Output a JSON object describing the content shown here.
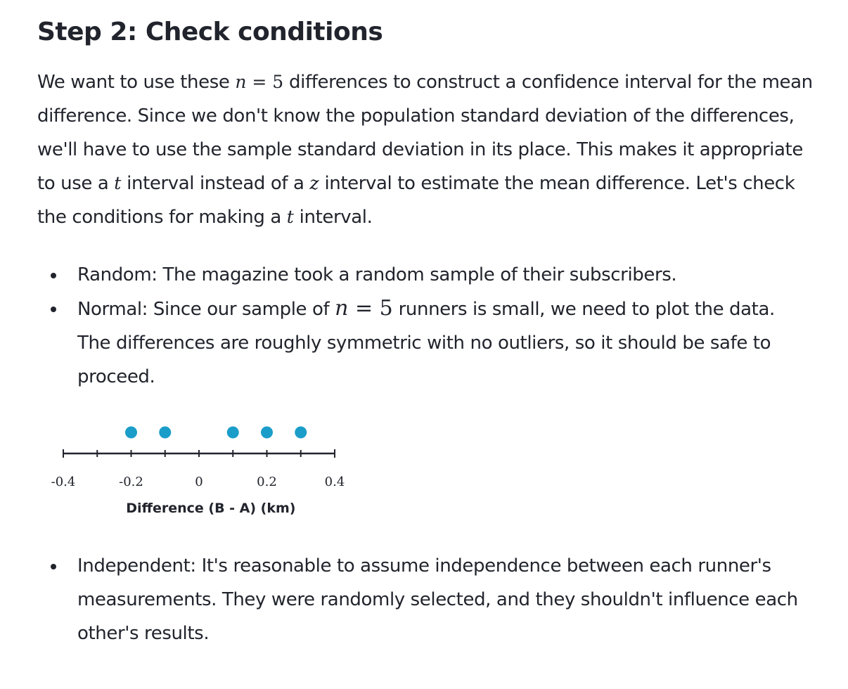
{
  "heading": "Step 2: Check conditions",
  "intro": {
    "p1": "We want to use these ",
    "m1": "n",
    "eq1": " = ",
    "n1": "5",
    "p2": " differences to construct a confidence interval for the mean difference. Since we don't know the population standard deviation of the differences, we'll have to use the sample standard deviation in its place. This makes it appropriate to use a ",
    "m2": "t",
    "p3": " interval instead of a ",
    "m3": "z",
    "p4": " interval to estimate the mean difference. Let's check the conditions for making a ",
    "m4": "t",
    "p5": " interval."
  },
  "conditions": {
    "random": "Random: The magazine took a random sample of their subscribers.",
    "normal": {
      "p1": "Normal: Since our sample of ",
      "m1": "n",
      "eq": " = ",
      "n1": "5",
      "p2": " runners is small, we need to plot the data. The differences are roughly symmetric with no outliers, so it should be safe to proceed."
    },
    "independent": "Independent: It's reasonable to assume independence between each runner's measurements. They were randomly selected, and they shouldn't influence each other's results."
  },
  "chart_data": {
    "type": "scatter",
    "chart_kind": "dot plot",
    "values": [
      -0.2,
      -0.1,
      0.1,
      0.2,
      0.3
    ],
    "xlabel": "Difference (B - A) (km)",
    "xlim": [
      -0.4,
      0.4
    ],
    "tick_step": 0.1,
    "tick_labels": [
      "-0.4",
      "-0.2",
      "0",
      "0.2",
      "0.4"
    ],
    "dot_color": "#1b9dc9",
    "axis_color": "#21242c",
    "grid": false
  }
}
